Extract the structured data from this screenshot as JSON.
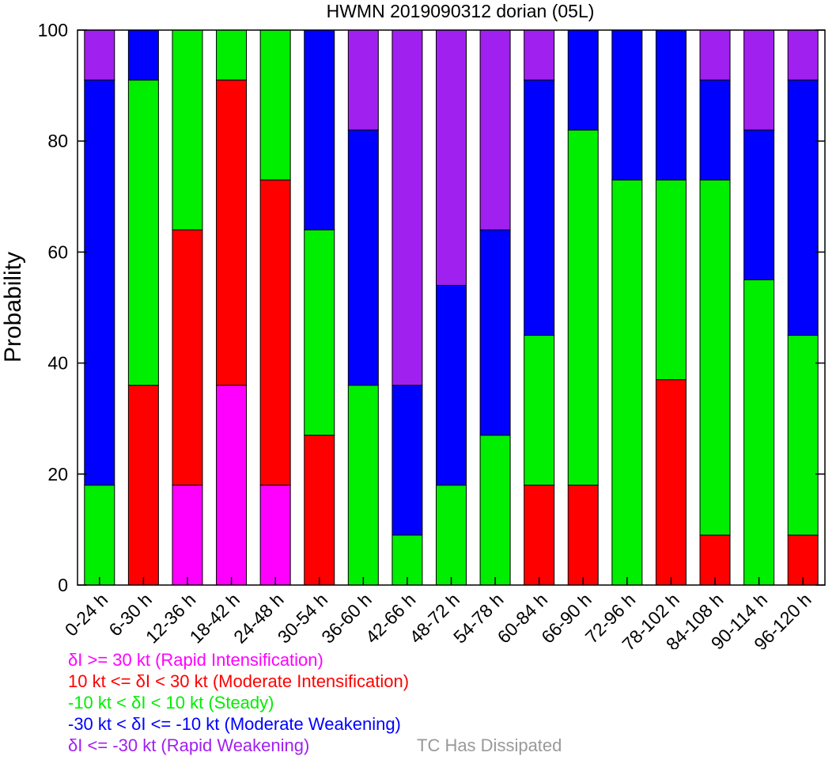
{
  "chart_data": {
    "type": "bar",
    "stacked": true,
    "title": "HWMN 2019090312 dorian (05L)",
    "xlabel": "",
    "ylabel": "Probability",
    "ylim": [
      0,
      100
    ],
    "yticks": [
      0,
      20,
      40,
      60,
      80,
      100
    ],
    "grid": false,
    "legend_position": "bottom-left",
    "categories": [
      "0-24 h",
      "6-30 h",
      "12-36 h",
      "18-42 h",
      "24-48 h",
      "30-54 h",
      "36-60 h",
      "42-66 h",
      "48-72 h",
      "54-78 h",
      "60-84 h",
      "66-90 h",
      "72-96 h",
      "78-102 h",
      "84-108 h",
      "90-114 h",
      "96-120 h"
    ],
    "series": [
      {
        "name": "δI >= 30 kt (Rapid Intensification)",
        "color": "#ff00ff",
        "values": [
          0,
          0,
          18,
          36,
          18,
          0,
          0,
          0,
          0,
          0,
          0,
          0,
          0,
          0,
          0,
          0,
          0
        ]
      },
      {
        "name": "10 kt <= δI < 30 kt (Moderate Intensification)",
        "color": "#ff0000",
        "values": [
          0,
          36,
          46,
          55,
          55,
          27,
          0,
          0,
          0,
          0,
          18,
          18,
          0,
          37,
          9,
          0,
          9
        ]
      },
      {
        "name": "-10 kt < δI < 10 kt (Steady)",
        "color": "#00ee00",
        "values": [
          18,
          55,
          36,
          9,
          27,
          37,
          36,
          9,
          18,
          27,
          27,
          64,
          73,
          36,
          64,
          55,
          36
        ]
      },
      {
        "name": "-30 kt < δI <= -10 kt (Moderate Weakening)",
        "color": "#0000ff",
        "values": [
          73,
          9,
          0,
          0,
          0,
          36,
          46,
          27,
          36,
          37,
          46,
          18,
          27,
          27,
          18,
          27,
          46
        ]
      },
      {
        "name": "δI <= -30 kt (Rapid Weakening)",
        "color": "#a020f0",
        "values": [
          9,
          0,
          0,
          0,
          0,
          0,
          18,
          64,
          46,
          36,
          9,
          0,
          0,
          0,
          9,
          18,
          9
        ]
      }
    ],
    "extra_legend": {
      "label": "TC Has Dissipated",
      "color": "#999999"
    }
  }
}
